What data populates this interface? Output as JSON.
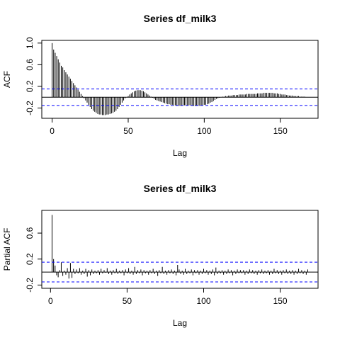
{
  "chart_data": [
    {
      "type": "acf",
      "title": "Series  df_milk3",
      "xlabel": "Lag",
      "ylabel": "ACF",
      "xlim": [
        0,
        168
      ],
      "ylim": [
        -0.34,
        1.0
      ],
      "x_ticks": [
        0,
        50,
        100,
        150
      ],
      "y_ticks": [
        -0.2,
        0.2,
        0.6,
        1.0
      ],
      "x_tick_labels": [
        "0",
        "50",
        "100",
        "150"
      ],
      "y_tick_labels": [
        "-0.2",
        "0.2",
        "0.6",
        "1.0"
      ],
      "conf_limit": 0.152,
      "colors": {
        "bars": "#000000",
        "zero_line": "#000000",
        "conf_lines": "#0000ff"
      },
      "lags": [
        0,
        1,
        2,
        3,
        4,
        5,
        6,
        7,
        8,
        9,
        10,
        11,
        12,
        13,
        14,
        15,
        16,
        17,
        18,
        19,
        20,
        21,
        22,
        23,
        24,
        25,
        26,
        27,
        28,
        29,
        30,
        31,
        32,
        33,
        34,
        35,
        36,
        37,
        38,
        39,
        40,
        41,
        42,
        43,
        44,
        45,
        46,
        47,
        48,
        49,
        50,
        51,
        52,
        53,
        54,
        55,
        56,
        57,
        58,
        59,
        60,
        61,
        62,
        63,
        64,
        65,
        66,
        67,
        68,
        69,
        70,
        71,
        72,
        73,
        74,
        75,
        76,
        77,
        78,
        79,
        80,
        81,
        82,
        83,
        84,
        85,
        86,
        87,
        88,
        89,
        90,
        91,
        92,
        93,
        94,
        95,
        96,
        97,
        98,
        99,
        100,
        101,
        102,
        103,
        104,
        105,
        106,
        107,
        108,
        109,
        110,
        111,
        112,
        113,
        114,
        115,
        116,
        117,
        118,
        119,
        120,
        121,
        122,
        123,
        124,
        125,
        126,
        127,
        128,
        129,
        130,
        131,
        132,
        133,
        134,
        135,
        136,
        137,
        138,
        139,
        140,
        141,
        142,
        143,
        144,
        145,
        146,
        147,
        148,
        149,
        150,
        151,
        152,
        153,
        154,
        155,
        156,
        157,
        158,
        159,
        160,
        161,
        162,
        163,
        164,
        165,
        166,
        167,
        168
      ],
      "values": [
        1.0,
        0.88,
        0.82,
        0.76,
        0.7,
        0.64,
        0.58,
        0.55,
        0.5,
        0.46,
        0.42,
        0.38,
        0.34,
        0.3,
        0.26,
        0.22,
        0.18,
        0.14,
        0.1,
        0.06,
        0.02,
        -0.02,
        -0.06,
        -0.1,
        -0.14,
        -0.18,
        -0.22,
        -0.25,
        -0.27,
        -0.29,
        -0.31,
        -0.32,
        -0.32,
        -0.33,
        -0.33,
        -0.33,
        -0.32,
        -0.32,
        -0.31,
        -0.3,
        -0.29,
        -0.27,
        -0.25,
        -0.22,
        -0.18,
        -0.14,
        -0.1,
        -0.06,
        -0.02,
        0.0,
        0.02,
        0.05,
        0.07,
        0.09,
        0.11,
        0.12,
        0.13,
        0.13,
        0.13,
        0.12,
        0.11,
        0.09,
        0.07,
        0.05,
        0.03,
        0.01,
        -0.01,
        -0.03,
        -0.05,
        -0.06,
        -0.07,
        -0.08,
        -0.09,
        -0.1,
        -0.11,
        -0.12,
        -0.13,
        -0.13,
        -0.14,
        -0.14,
        -0.15,
        -0.15,
        -0.16,
        -0.16,
        -0.16,
        -0.16,
        -0.15,
        -0.15,
        -0.15,
        -0.15,
        -0.15,
        -0.15,
        -0.16,
        -0.16,
        -0.16,
        -0.16,
        -0.16,
        -0.16,
        -0.15,
        -0.15,
        -0.14,
        -0.14,
        -0.13,
        -0.12,
        -0.1,
        -0.09,
        -0.07,
        -0.05,
        -0.03,
        -0.02,
        -0.01,
        0.0,
        0.01,
        0.01,
        0.02,
        0.02,
        0.03,
        0.03,
        0.03,
        0.04,
        0.04,
        0.04,
        0.04,
        0.05,
        0.05,
        0.05,
        0.05,
        0.05,
        0.06,
        0.06,
        0.06,
        0.06,
        0.06,
        0.06,
        0.06,
        0.07,
        0.07,
        0.07,
        0.07,
        0.08,
        0.08,
        0.08,
        0.08,
        0.08,
        0.08,
        0.08,
        0.07,
        0.07,
        0.07,
        0.06,
        0.06,
        0.05,
        0.05,
        0.05,
        0.04,
        0.04,
        0.03,
        0.03,
        0.03,
        0.02,
        0.02,
        0.02,
        0.02,
        0.01,
        0.01,
        0.01,
        0.01,
        0.0,
        0.0,
        0.0,
        0.0
      ]
    },
    {
      "type": "pacf",
      "title": "Series  df_milk3",
      "xlabel": "Lag",
      "ylabel": "Partial ACF",
      "xlim": [
        1,
        168
      ],
      "ylim": [
        -0.2,
        0.9
      ],
      "x_ticks": [
        0,
        50,
        100,
        150
      ],
      "y_ticks": [
        -0.2,
        0.2,
        0.6
      ],
      "x_tick_labels": [
        "0",
        "50",
        "100",
        "150"
      ],
      "y_tick_labels": [
        "-0.2",
        "0.2",
        "0.6"
      ],
      "conf_limit": 0.152,
      "colors": {
        "bars": "#000000",
        "zero_line": "#000000",
        "conf_lines": "#0000ff"
      },
      "lags": [
        1,
        2,
        3,
        4,
        5,
        6,
        7,
        8,
        9,
        10,
        11,
        12,
        13,
        14,
        15,
        16,
        17,
        18,
        19,
        20,
        21,
        22,
        23,
        24,
        25,
        26,
        27,
        28,
        29,
        30,
        31,
        32,
        33,
        34,
        35,
        36,
        37,
        38,
        39,
        40,
        41,
        42,
        43,
        44,
        45,
        46,
        47,
        48,
        49,
        50,
        51,
        52,
        53,
        54,
        55,
        56,
        57,
        58,
        59,
        60,
        61,
        62,
        63,
        64,
        65,
        66,
        67,
        68,
        69,
        70,
        71,
        72,
        73,
        74,
        75,
        76,
        77,
        78,
        79,
        80,
        81,
        82,
        83,
        84,
        85,
        86,
        87,
        88,
        89,
        90,
        91,
        92,
        93,
        94,
        95,
        96,
        97,
        98,
        99,
        100,
        101,
        102,
        103,
        104,
        105,
        106,
        107,
        108,
        109,
        110,
        111,
        112,
        113,
        114,
        115,
        116,
        117,
        118,
        119,
        120,
        121,
        122,
        123,
        124,
        125,
        126,
        127,
        128,
        129,
        130,
        131,
        132,
        133,
        134,
        135,
        136,
        137,
        138,
        139,
        140,
        141,
        142,
        143,
        144,
        145,
        146,
        147,
        148,
        149,
        150,
        151,
        152,
        153,
        154,
        155,
        156,
        157,
        158,
        159,
        160,
        161,
        162,
        163,
        164,
        165,
        166,
        167,
        168
      ],
      "values": [
        0.88,
        0.2,
        0.1,
        -0.05,
        -0.08,
        0.03,
        0.15,
        -0.06,
        0.02,
        -0.04,
        0.06,
        -0.1,
        0.14,
        -0.09,
        0.05,
        -0.03,
        0.04,
        -0.02,
        0.06,
        -0.04,
        0.02,
        -0.03,
        0.05,
        -0.07,
        0.03,
        -0.05,
        0.04,
        -0.03,
        0.02,
        -0.02,
        0.03,
        -0.04,
        0.05,
        -0.02,
        0.03,
        -0.01,
        0.06,
        -0.03,
        0.02,
        -0.04,
        0.03,
        -0.02,
        0.05,
        -0.03,
        0.02,
        -0.02,
        0.03,
        -0.05,
        0.04,
        -0.02,
        0.06,
        -0.03,
        0.02,
        -0.04,
        0.08,
        -0.03,
        0.03,
        -0.02,
        0.04,
        -0.05,
        0.03,
        -0.02,
        0.02,
        -0.04,
        0.03,
        -0.02,
        0.05,
        -0.03,
        0.02,
        -0.06,
        0.03,
        -0.02,
        0.08,
        -0.03,
        0.02,
        -0.04,
        0.03,
        -0.02,
        0.04,
        -0.03,
        0.02,
        -0.05,
        0.11,
        0.04,
        -0.03,
        0.02,
        -0.04,
        0.05,
        -0.03,
        0.02,
        -0.02,
        0.04,
        -0.05,
        0.03,
        -0.02,
        0.03,
        -0.04,
        0.02,
        -0.03,
        0.05,
        -0.02,
        0.03,
        -0.04,
        0.02,
        -0.03,
        0.04,
        -0.05,
        0.07,
        -0.03,
        0.02,
        -0.02,
        0.03,
        -0.04,
        0.02,
        -0.03,
        0.04,
        -0.02,
        0.03,
        -0.05,
        0.02,
        -0.03,
        0.04,
        -0.02,
        0.03,
        -0.02,
        0.03,
        -0.04,
        0.02,
        -0.03,
        0.04,
        -0.02,
        0.03,
        -0.03,
        0.02,
        -0.04,
        0.03,
        -0.02,
        0.04,
        -0.03,
        0.02,
        -0.02,
        0.03,
        -0.04,
        0.02,
        -0.03,
        0.05,
        -0.02,
        0.03,
        -0.03,
        0.02,
        -0.04,
        0.03,
        -0.02,
        0.04,
        -0.03,
        0.02,
        -0.03,
        0.03,
        -0.04,
        0.02,
        -0.03,
        0.05,
        -0.02,
        0.03,
        -0.03,
        0.02,
        -0.04,
        0.04
      ]
    }
  ]
}
